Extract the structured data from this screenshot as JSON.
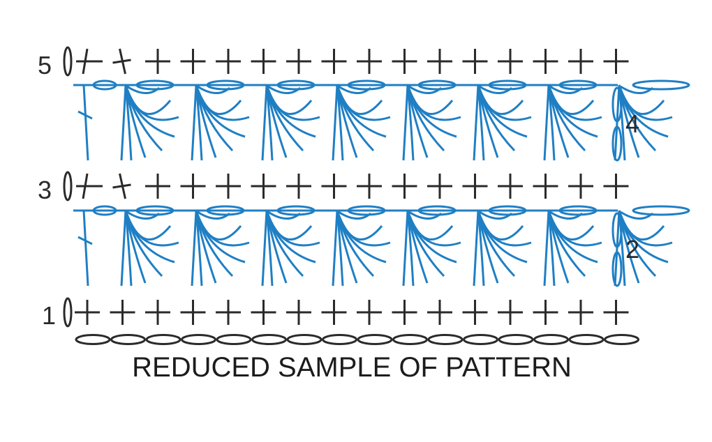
{
  "caption": "REDUCED SAMPLE OF PATTERN",
  "row_labels": [
    {
      "id": "row-1",
      "text": "1"
    },
    {
      "id": "row-2",
      "text": "2"
    },
    {
      "id": "row-3",
      "text": "3"
    },
    {
      "id": "row-4",
      "text": "4"
    },
    {
      "id": "row-5",
      "text": "5"
    }
  ],
  "colors": {
    "black_stitches": "#2a2a2a",
    "blue_stitches": "#1f7fc4"
  },
  "stitch_counts": {
    "single_crochet_per_row": 16,
    "foundation_chains": 16,
    "fans_per_row": 8
  }
}
